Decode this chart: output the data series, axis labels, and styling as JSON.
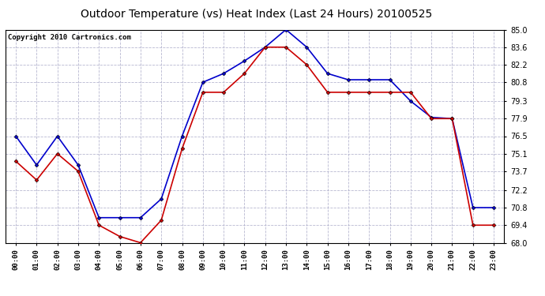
{
  "title": "Outdoor Temperature (vs) Heat Index (Last 24 Hours) 20100525",
  "copyright": "Copyright 2010 Cartronics.com",
  "hours": [
    "00:00",
    "01:00",
    "02:00",
    "03:00",
    "04:00",
    "05:00",
    "06:00",
    "07:00",
    "08:00",
    "09:00",
    "10:00",
    "11:00",
    "12:00",
    "13:00",
    "14:00",
    "15:00",
    "16:00",
    "17:00",
    "18:00",
    "19:00",
    "20:00",
    "21:00",
    "22:00",
    "23:00"
  ],
  "blue_temp": [
    76.5,
    74.2,
    76.5,
    74.2,
    70.0,
    70.0,
    70.0,
    71.5,
    76.5,
    80.8,
    81.5,
    82.5,
    83.6,
    85.0,
    83.6,
    81.5,
    81.0,
    81.0,
    81.0,
    79.3,
    78.0,
    77.9,
    70.8,
    70.8
  ],
  "red_heat": [
    74.5,
    73.0,
    75.1,
    73.7,
    69.4,
    68.5,
    68.0,
    69.8,
    75.5,
    80.0,
    80.0,
    81.5,
    83.6,
    83.6,
    82.2,
    80.0,
    80.0,
    80.0,
    80.0,
    80.0,
    77.9,
    77.9,
    69.4,
    69.4
  ],
  "blue_color": "#0000cc",
  "red_color": "#cc0000",
  "bg_color": "#ffffff",
  "plot_bg": "#ffffff",
  "grid_color": "#b0b0cc",
  "ylim": [
    68.0,
    85.0
  ],
  "yticks": [
    68.0,
    69.4,
    70.8,
    72.2,
    73.7,
    75.1,
    76.5,
    77.9,
    79.3,
    80.8,
    82.2,
    83.6,
    85.0
  ],
  "title_fontsize": 10,
  "copyright_fontsize": 6.5,
  "marker": "D",
  "marker_size": 2.5,
  "linewidth": 1.2
}
